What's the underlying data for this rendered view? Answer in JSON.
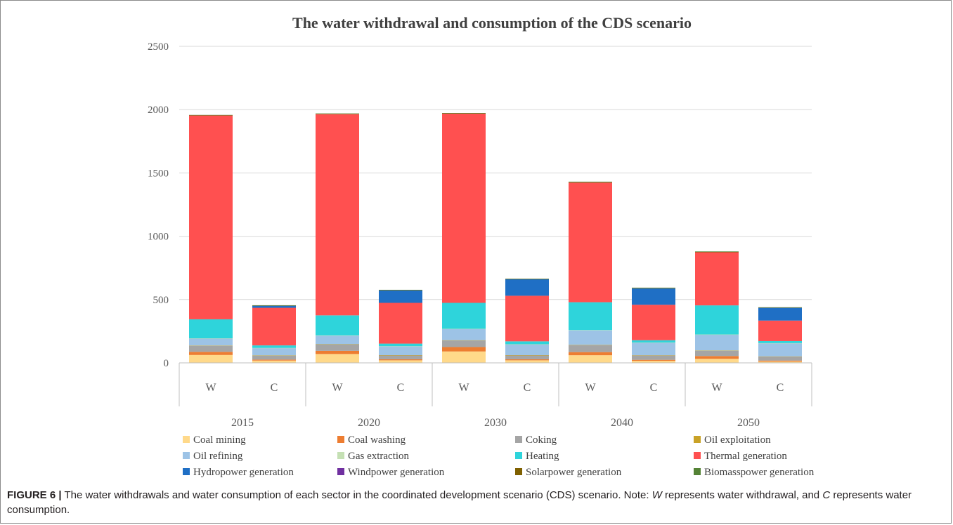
{
  "chart_data": {
    "type": "bar",
    "stacked": true,
    "title": "The water withdrawal and consumption of the CDS scenario",
    "xlabel": "",
    "ylabel": "",
    "ylim": [
      0,
      2500
    ],
    "yticks": [
      0,
      500,
      1000,
      1500,
      2000,
      2500
    ],
    "grid": true,
    "legend_position": "bottom",
    "groups": [
      "2015",
      "2020",
      "2030",
      "2040",
      "2050"
    ],
    "categories": [
      "W",
      "C",
      "W",
      "C",
      "W",
      "C",
      "W",
      "C",
      "W",
      "C"
    ],
    "series": [
      {
        "name": "Coal mining",
        "color": "#FFD98A",
        "values": [
          62,
          18,
          70,
          20,
          90,
          20,
          60,
          16,
          32,
          10
        ]
      },
      {
        "name": "Coal washing",
        "color": "#ED7D31",
        "values": [
          25,
          8,
          25,
          8,
          35,
          8,
          25,
          8,
          22,
          8
        ]
      },
      {
        "name": "Coking",
        "color": "#A5A5A5",
        "values": [
          48,
          32,
          50,
          32,
          52,
          32,
          55,
          35,
          42,
          32
        ]
      },
      {
        "name": "Oil exploitation",
        "color": "#C9A227",
        "values": [
          2,
          1,
          2,
          1,
          2,
          1,
          2,
          1,
          2,
          1
        ]
      },
      {
        "name": "Oil refining",
        "color": "#9DC3E6",
        "values": [
          55,
          58,
          68,
          70,
          88,
          85,
          115,
          100,
          124,
          104
        ]
      },
      {
        "name": "Gas extraction",
        "color": "#C5E0B4",
        "values": [
          2,
          1,
          2,
          1,
          2,
          1,
          2,
          1,
          2,
          1
        ]
      },
      {
        "name": "Heating",
        "color": "#2ED4DB",
        "values": [
          150,
          20,
          158,
          20,
          205,
          23,
          220,
          18,
          230,
          16
        ]
      },
      {
        "name": "Thermal generation",
        "color": "#FF5050",
        "values": [
          1610,
          297,
          1589,
          322,
          1495,
          360,
          945,
          280,
          420,
          162
        ]
      },
      {
        "name": "Hydropower generation",
        "color": "#1F6FC5",
        "values": [
          0,
          17,
          0,
          100,
          0,
          132,
          0,
          130,
          0,
          102
        ]
      },
      {
        "name": "Windpower generation",
        "color": "#7030A0",
        "values": [
          0,
          0,
          0,
          0,
          0,
          0,
          0,
          0,
          0,
          0
        ]
      },
      {
        "name": "Solarpower generation",
        "color": "#7F6000",
        "values": [
          2,
          1,
          3,
          1,
          2,
          1,
          3,
          2,
          2,
          1
        ]
      },
      {
        "name": "Biomasspower generation",
        "color": "#548235",
        "values": [
          2,
          2,
          3,
          2,
          2,
          2,
          4,
          3,
          4,
          2
        ]
      }
    ]
  },
  "caption": {
    "label": "FIGURE 6 |",
    "text_1": " The water withdrawals and water consumption of each sector in the coordinated development scenario (CDS) scenario. Note: ",
    "w_letter": "W",
    "text_2": " represents water withdrawal, and ",
    "c_letter": "C",
    "text_3": " represents water consumption."
  }
}
